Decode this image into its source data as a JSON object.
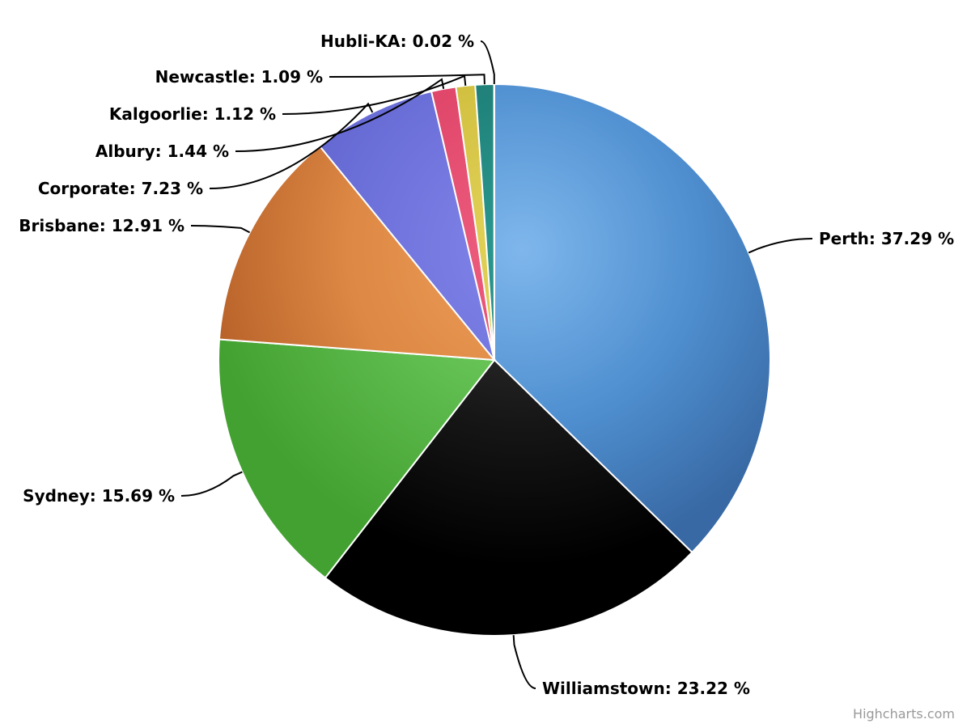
{
  "chart_data": {
    "type": "pie",
    "unit_suffix": " %",
    "slices": [
      {
        "name": "Perth",
        "value": 37.29,
        "label": "Perth: 37.29 %",
        "color": "#4f8fd0",
        "color_light": "#7fb7ec",
        "color_dark": "#3869a4"
      },
      {
        "name": "Williamstown",
        "value": 23.22,
        "label": "Williamstown: 23.22 %",
        "color": "#161616",
        "color_light": "#3a3a3c",
        "color_dark": "#000000"
      },
      {
        "name": "Sydney",
        "value": 15.69,
        "label": "Sydney: 15.69 %",
        "color": "#5bb84a",
        "color_light": "#7dd86a",
        "color_dark": "#43a131"
      },
      {
        "name": "Brisbane",
        "value": 12.91,
        "label": "Brisbane: 12.91 %",
        "color": "#dd8844",
        "color_light": "#ee9f5a",
        "color_dark": "#b8622a"
      },
      {
        "name": "Corporate",
        "value": 7.23,
        "label": "Corporate: 7.23 %",
        "color": "#6b6fd8",
        "color_light": "#8285ea",
        "color_dark": "#5a5cc6"
      },
      {
        "name": "Albury",
        "value": 1.44,
        "label": "Albury: 1.44 %",
        "color": "#e0476a",
        "color_light": "#ee5e80",
        "color_dark": "#c93a5c"
      },
      {
        "name": "Kalgoorlie",
        "value": 1.12,
        "label": "Kalgoorlie: 1.12 %",
        "color": "#d1c040",
        "color_light": "#e3d35a",
        "color_dark": "#b7a632"
      },
      {
        "name": "Newcastle",
        "value": 1.09,
        "label": "Newcastle: 1.09 %",
        "color": "#1f8078",
        "color_light": "#2b9990",
        "color_dark": "#166660"
      },
      {
        "name": "Hubli-KA",
        "value": 0.02,
        "label": "Hubli-KA: 0.02 %",
        "color": "#7cb5ec",
        "color_light": "#9ccbf5",
        "color_dark": "#5e96cc"
      }
    ],
    "title": "",
    "legend": "none",
    "data_labels": "outside-with-connectors"
  },
  "credits": {
    "text": "Highcharts.com"
  }
}
